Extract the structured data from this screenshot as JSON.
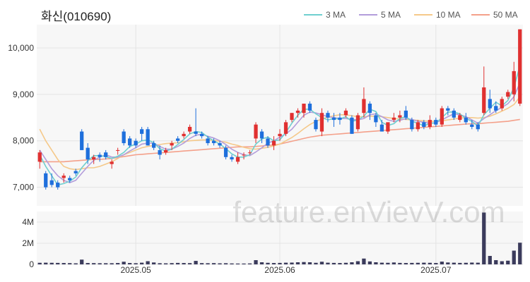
{
  "chart_data": {
    "type": "candlestick",
    "title": "화신(010690)",
    "watermark": "feature.enVievV.com",
    "legend": [
      {
        "name": "3 MA",
        "color": "#6fcfcf"
      },
      {
        "name": "5 MA",
        "color": "#b39ddb"
      },
      {
        "name": "10 MA",
        "color": "#f5c98a"
      },
      {
        "name": "50 MA",
        "color": "#f4a08a"
      }
    ],
    "colors": {
      "up": "#e03030",
      "down": "#1e6fdc",
      "volume": "#3b3b5c",
      "grid": "#e4e4e4",
      "panel": "#f7f7f7"
    },
    "price_axis": {
      "ticks": [
        7000,
        8000,
        9000,
        10000
      ],
      "tick_labels": [
        "7,000",
        "8,000",
        "9,000",
        "10,000"
      ],
      "range": [
        6600,
        10500
      ]
    },
    "volume_axis": {
      "ticks": [
        0,
        2000000,
        4000000
      ],
      "tick_labels": [
        "0",
        "2M",
        "4M"
      ],
      "range": [
        0,
        5000000
      ]
    },
    "x_axis": {
      "tick_labels": [
        "2025.05",
        "2025.06",
        "2025.07"
      ],
      "tick_index": [
        16,
        40,
        66
      ]
    },
    "candles": [
      {
        "o": 7550,
        "h": 7800,
        "l": 7400,
        "c": 7750
      },
      {
        "o": 7300,
        "h": 7350,
        "l": 6950,
        "c": 7000
      },
      {
        "o": 7150,
        "h": 7300,
        "l": 7000,
        "c": 7050
      },
      {
        "o": 7100,
        "h": 7150,
        "l": 6950,
        "c": 7000
      },
      {
        "o": 7200,
        "h": 7300,
        "l": 7100,
        "c": 7250
      },
      {
        "o": 7200,
        "h": 7250,
        "l": 7100,
        "c": 7150
      },
      {
        "o": 7350,
        "h": 7400,
        "l": 7250,
        "c": 7300
      },
      {
        "o": 8200,
        "h": 8250,
        "l": 7800,
        "c": 7800
      },
      {
        "o": 7850,
        "h": 7950,
        "l": 7500,
        "c": 7600
      },
      {
        "o": 7600,
        "h": 7700,
        "l": 7500,
        "c": 7650
      },
      {
        "o": 7700,
        "h": 7750,
        "l": 7550,
        "c": 7650
      },
      {
        "o": 7750,
        "h": 7800,
        "l": 7600,
        "c": 7650
      },
      {
        "o": 7500,
        "h": 7600,
        "l": 7400,
        "c": 7550
      },
      {
        "o": 7800,
        "h": 7850,
        "l": 7700,
        "c": 7800
      },
      {
        "o": 8200,
        "h": 8250,
        "l": 7900,
        "c": 7950
      },
      {
        "o": 8050,
        "h": 8100,
        "l": 7850,
        "c": 7900
      },
      {
        "o": 8000,
        "h": 8050,
        "l": 7850,
        "c": 7900
      },
      {
        "o": 8250,
        "h": 8300,
        "l": 8000,
        "c": 8150
      },
      {
        "o": 8250,
        "h": 8300,
        "l": 7900,
        "c": 7900
      },
      {
        "o": 7950,
        "h": 8000,
        "l": 7800,
        "c": 7850
      },
      {
        "o": 7800,
        "h": 7900,
        "l": 7600,
        "c": 7700
      },
      {
        "o": 7750,
        "h": 7850,
        "l": 7700,
        "c": 7800
      },
      {
        "o": 7900,
        "h": 8000,
        "l": 7800,
        "c": 7950
      },
      {
        "o": 8050,
        "h": 8100,
        "l": 7950,
        "c": 8000
      },
      {
        "o": 8100,
        "h": 8200,
        "l": 8050,
        "c": 8150
      },
      {
        "o": 8200,
        "h": 8350,
        "l": 8150,
        "c": 8300
      },
      {
        "o": 8200,
        "h": 8700,
        "l": 8100,
        "c": 8150
      },
      {
        "o": 8150,
        "h": 8200,
        "l": 8050,
        "c": 8100
      },
      {
        "o": 8050,
        "h": 8100,
        "l": 7900,
        "c": 7950
      },
      {
        "o": 8000,
        "h": 8050,
        "l": 7900,
        "c": 7950
      },
      {
        "o": 7950,
        "h": 8000,
        "l": 7850,
        "c": 7900
      },
      {
        "o": 7850,
        "h": 7900,
        "l": 7600,
        "c": 7650
      },
      {
        "o": 7650,
        "h": 7700,
        "l": 7550,
        "c": 7600
      },
      {
        "o": 7550,
        "h": 7750,
        "l": 7500,
        "c": 7650
      },
      {
        "o": 7700,
        "h": 7750,
        "l": 7600,
        "c": 7700
      },
      {
        "o": 7750,
        "h": 7800,
        "l": 7700,
        "c": 7750
      },
      {
        "o": 8050,
        "h": 8400,
        "l": 7950,
        "c": 8350
      },
      {
        "o": 8200,
        "h": 8250,
        "l": 7950,
        "c": 8050
      },
      {
        "o": 8050,
        "h": 8100,
        "l": 7850,
        "c": 7900
      },
      {
        "o": 7900,
        "h": 8100,
        "l": 7800,
        "c": 8000
      },
      {
        "o": 8100,
        "h": 8250,
        "l": 8000,
        "c": 8150
      },
      {
        "o": 8150,
        "h": 8450,
        "l": 8100,
        "c": 8400
      },
      {
        "o": 8450,
        "h": 8600,
        "l": 8400,
        "c": 8600
      },
      {
        "o": 8600,
        "h": 8700,
        "l": 8500,
        "c": 8650
      },
      {
        "o": 8600,
        "h": 8800,
        "l": 8500,
        "c": 8800
      },
      {
        "o": 8800,
        "h": 8850,
        "l": 8600,
        "c": 8650
      },
      {
        "o": 8450,
        "h": 8500,
        "l": 8200,
        "c": 8250
      },
      {
        "o": 8200,
        "h": 8700,
        "l": 8100,
        "c": 8600
      },
      {
        "o": 8600,
        "h": 8650,
        "l": 8400,
        "c": 8500
      },
      {
        "o": 8500,
        "h": 8600,
        "l": 8300,
        "c": 8450
      },
      {
        "o": 8500,
        "h": 8600,
        "l": 8350,
        "c": 8450
      },
      {
        "o": 8550,
        "h": 8700,
        "l": 8500,
        "c": 8650
      },
      {
        "o": 8500,
        "h": 8550,
        "l": 8150,
        "c": 8150
      },
      {
        "o": 8250,
        "h": 8600,
        "l": 8200,
        "c": 8550
      },
      {
        "o": 8600,
        "h": 9150,
        "l": 8500,
        "c": 8900
      },
      {
        "o": 8800,
        "h": 8850,
        "l": 8450,
        "c": 8600
      },
      {
        "o": 8550,
        "h": 8600,
        "l": 8300,
        "c": 8400
      },
      {
        "o": 8350,
        "h": 8450,
        "l": 8200,
        "c": 8200
      },
      {
        "o": 8200,
        "h": 8400,
        "l": 8150,
        "c": 8400
      },
      {
        "o": 8450,
        "h": 8600,
        "l": 8400,
        "c": 8500
      },
      {
        "o": 8500,
        "h": 8650,
        "l": 8400,
        "c": 8550
      },
      {
        "o": 8650,
        "h": 8750,
        "l": 8450,
        "c": 8500
      },
      {
        "o": 8450,
        "h": 8500,
        "l": 8200,
        "c": 8250
      },
      {
        "o": 8250,
        "h": 8450,
        "l": 8200,
        "c": 8400
      },
      {
        "o": 8400,
        "h": 8450,
        "l": 8250,
        "c": 8300
      },
      {
        "o": 8300,
        "h": 8550,
        "l": 8250,
        "c": 8450
      },
      {
        "o": 8450,
        "h": 8500,
        "l": 8300,
        "c": 8350
      },
      {
        "o": 8350,
        "h": 8750,
        "l": 8300,
        "c": 8700
      },
      {
        "o": 8700,
        "h": 8750,
        "l": 8550,
        "c": 8650
      },
      {
        "o": 8650,
        "h": 8700,
        "l": 8450,
        "c": 8500
      },
      {
        "o": 8450,
        "h": 8600,
        "l": 8400,
        "c": 8550
      },
      {
        "o": 8500,
        "h": 8600,
        "l": 8350,
        "c": 8400
      },
      {
        "o": 8350,
        "h": 8450,
        "l": 8250,
        "c": 8300
      },
      {
        "o": 8350,
        "h": 8400,
        "l": 8200,
        "c": 8250
      },
      {
        "o": 8600,
        "h": 9600,
        "l": 8550,
        "c": 9150
      },
      {
        "o": 8900,
        "h": 9100,
        "l": 8600,
        "c": 8700
      },
      {
        "o": 8750,
        "h": 8850,
        "l": 8600,
        "c": 8650
      },
      {
        "o": 8700,
        "h": 8950,
        "l": 8650,
        "c": 8900
      },
      {
        "o": 8950,
        "h": 9100,
        "l": 8900,
        "c": 9050
      },
      {
        "o": 9000,
        "h": 9700,
        "l": 8850,
        "c": 9500
      },
      {
        "o": 8800,
        "h": 10400,
        "l": 8750,
        "c": 10400
      }
    ],
    "ma3": [
      7700,
      7450,
      7250,
      7050,
      7080,
      7130,
      7220,
      7420,
      7570,
      7680,
      7680,
      7660,
      7620,
      7670,
      7750,
      7880,
      7930,
      8000,
      8020,
      7960,
      7830,
      7780,
      7820,
      7920,
      8030,
      8150,
      8200,
      8180,
      8080,
      8000,
      7930,
      7830,
      7720,
      7650,
      7650,
      7700,
      7930,
      8040,
      8080,
      8000,
      8020,
      8180,
      8380,
      8550,
      8680,
      8680,
      8580,
      8500,
      8450,
      8480,
      8470,
      8520,
      8420,
      8450,
      8530,
      8680,
      8630,
      8400,
      8330,
      8370,
      8480,
      8520,
      8420,
      8380,
      8320,
      8380,
      8380,
      8500,
      8620,
      8620,
      8580,
      8480,
      8420,
      8320,
      8560,
      8700,
      8830,
      8750,
      8870,
      9150,
      9620
    ],
    "ma5": [
      7800,
      7600,
      7400,
      7250,
      7150,
      7100,
      7150,
      7300,
      7450,
      7580,
      7650,
      7700,
      7650,
      7650,
      7700,
      7780,
      7850,
      7930,
      7950,
      7950,
      7880,
      7820,
      7820,
      7880,
      7950,
      8050,
      8120,
      8140,
      8100,
      8060,
      8000,
      7920,
      7820,
      7750,
      7700,
      7680,
      7760,
      7850,
      7950,
      8000,
      8080,
      8150,
      8250,
      8400,
      8550,
      8620,
      8600,
      8560,
      8520,
      8500,
      8480,
      8480,
      8460,
      8450,
      8480,
      8560,
      8580,
      8520,
      8450,
      8420,
      8440,
      8480,
      8460,
      8420,
      8400,
      8380,
      8390,
      8450,
      8520,
      8580,
      8560,
      8520,
      8450,
      8380,
      8480,
      8560,
      8650,
      8720,
      8800,
      8950,
      9250
    ],
    "ma10": [
      8250,
      8000,
      7800,
      7600,
      7450,
      7400,
      7380,
      7400,
      7420,
      7420,
      7450,
      7500,
      7550,
      7620,
      7700,
      7750,
      7800,
      7850,
      7880,
      7900,
      7920,
      7940,
      7950,
      7960,
      7980,
      8000,
      8010,
      8020,
      8020,
      8010,
      7990,
      7970,
      7930,
      7900,
      7860,
      7830,
      7820,
      7840,
      7860,
      7890,
      7930,
      8000,
      8070,
      8160,
      8260,
      8350,
      8420,
      8470,
      8510,
      8540,
      8560,
      8560,
      8540,
      8520,
      8520,
      8530,
      8530,
      8520,
      8500,
      8480,
      8470,
      8460,
      8450,
      8440,
      8430,
      8420,
      8420,
      8430,
      8450,
      8470,
      8490,
      8500,
      8500,
      8490,
      8500,
      8530,
      8580,
      8640,
      8700,
      8780,
      8950
    ],
    "ma50": [
      7550,
      7550,
      7550,
      7550,
      7550,
      7560,
      7570,
      7580,
      7590,
      7600,
      7600,
      7610,
      7620,
      7640,
      7660,
      7680,
      7700,
      7710,
      7720,
      7730,
      7740,
      7750,
      7760,
      7770,
      7780,
      7790,
      7800,
      7810,
      7820,
      7830,
      7840,
      7850,
      7860,
      7870,
      7870,
      7870,
      7880,
      7890,
      7900,
      7910,
      7930,
      7960,
      7990,
      8020,
      8050,
      8080,
      8100,
      8120,
      8130,
      8140,
      8150,
      8160,
      8170,
      8180,
      8190,
      8200,
      8210,
      8220,
      8230,
      8240,
      8250,
      8260,
      8270,
      8280,
      8290,
      8300,
      8310,
      8320,
      8330,
      8340,
      8350,
      8360,
      8370,
      8370,
      8380,
      8390,
      8400,
      8410,
      8420,
      8440,
      8460
    ],
    "volumes": [
      150000,
      160000,
      150000,
      140000,
      130000,
      120000,
      100000,
      450000,
      130000,
      120000,
      110000,
      110000,
      110000,
      130000,
      250000,
      130000,
      110000,
      160000,
      300000,
      180000,
      110000,
      100000,
      120000,
      140000,
      130000,
      120000,
      330000,
      120000,
      110000,
      120000,
      100000,
      110000,
      90000,
      80000,
      80000,
      90000,
      400000,
      200000,
      150000,
      130000,
      140000,
      160000,
      170000,
      200000,
      220000,
      200000,
      150000,
      250000,
      160000,
      140000,
      130000,
      150000,
      200000,
      300000,
      550000,
      280000,
      200000,
      160000,
      150000,
      180000,
      140000,
      130000,
      140000,
      150000,
      160000,
      150000,
      130000,
      260000,
      180000,
      160000,
      140000,
      150000,
      170000,
      160000,
      4900000,
      800000,
      400000,
      300000,
      350000,
      1300000,
      2050000
    ]
  }
}
